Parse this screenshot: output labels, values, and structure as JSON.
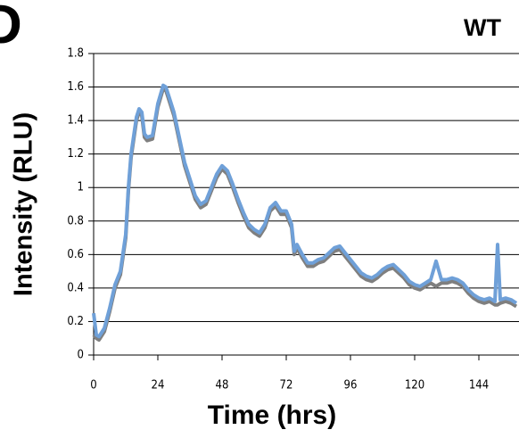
{
  "panel": "D",
  "chart_data": {
    "type": "line",
    "title": "WT",
    "xlabel": "Time (hrs)",
    "ylabel": "Intensity (RLU)",
    "x": [
      0,
      1,
      2,
      4,
      6,
      8,
      10,
      12,
      13,
      14,
      16,
      17,
      18,
      19,
      20,
      22,
      24,
      26,
      27,
      28,
      30,
      32,
      34,
      36,
      38,
      40,
      42,
      44,
      46,
      48,
      50,
      52,
      54,
      56,
      58,
      60,
      62,
      64,
      66,
      68,
      70,
      72,
      74,
      75,
      76,
      78,
      80,
      82,
      84,
      86,
      88,
      90,
      92,
      94,
      96,
      98,
      100,
      102,
      104,
      106,
      108,
      110,
      112,
      114,
      116,
      118,
      120,
      122,
      124,
      126,
      128,
      130,
      132,
      134,
      136,
      138,
      140,
      142,
      144,
      146,
      148,
      150,
      151,
      152,
      154,
      156,
      158
    ],
    "series": [
      {
        "color": "#7f7f7f",
        "values": [
          0.12,
          0.1,
          0.09,
          0.14,
          0.26,
          0.4,
          0.48,
          0.7,
          0.98,
          1.18,
          1.4,
          1.45,
          1.43,
          1.3,
          1.28,
          1.29,
          1.48,
          1.59,
          1.58,
          1.53,
          1.43,
          1.28,
          1.13,
          1.03,
          0.93,
          0.88,
          0.9,
          0.98,
          1.06,
          1.11,
          1.08,
          1.0,
          0.91,
          0.83,
          0.76,
          0.73,
          0.71,
          0.76,
          0.86,
          0.89,
          0.84,
          0.84,
          0.76,
          0.6,
          0.64,
          0.58,
          0.53,
          0.53,
          0.55,
          0.56,
          0.59,
          0.62,
          0.63,
          0.59,
          0.55,
          0.51,
          0.47,
          0.45,
          0.44,
          0.46,
          0.49,
          0.51,
          0.52,
          0.49,
          0.46,
          0.42,
          0.4,
          0.39,
          0.41,
          0.43,
          0.41,
          0.43,
          0.43,
          0.44,
          0.43,
          0.41,
          0.37,
          0.34,
          0.32,
          0.31,
          0.32,
          0.3,
          0.3,
          0.31,
          0.32,
          0.31,
          0.29
        ]
      },
      {
        "color": "#6fa0d8",
        "values": [
          0.25,
          0.12,
          0.11,
          0.16,
          0.28,
          0.42,
          0.5,
          0.72,
          1.0,
          1.2,
          1.42,
          1.47,
          1.45,
          1.32,
          1.3,
          1.31,
          1.5,
          1.61,
          1.6,
          1.55,
          1.45,
          1.3,
          1.15,
          1.05,
          0.95,
          0.9,
          0.92,
          1.0,
          1.08,
          1.13,
          1.1,
          1.02,
          0.93,
          0.85,
          0.78,
          0.75,
          0.73,
          0.78,
          0.88,
          0.91,
          0.86,
          0.86,
          0.78,
          0.62,
          0.66,
          0.6,
          0.55,
          0.55,
          0.57,
          0.58,
          0.61,
          0.64,
          0.65,
          0.61,
          0.57,
          0.53,
          0.49,
          0.47,
          0.46,
          0.48,
          0.51,
          0.53,
          0.54,
          0.51,
          0.48,
          0.44,
          0.42,
          0.41,
          0.43,
          0.45,
          0.56,
          0.45,
          0.45,
          0.46,
          0.45,
          0.43,
          0.39,
          0.36,
          0.34,
          0.33,
          0.34,
          0.32,
          0.66,
          0.33,
          0.34,
          0.33,
          0.31
        ]
      }
    ],
    "xlim": [
      0,
      159
    ],
    "ylim": [
      0,
      1.8
    ],
    "xticks": [
      0,
      24,
      48,
      72,
      96,
      120,
      144
    ],
    "yticks": [
      0,
      0.2,
      0.4,
      0.6,
      0.8,
      1,
      1.2,
      1.4,
      1.6,
      1.8
    ],
    "grid": true
  }
}
